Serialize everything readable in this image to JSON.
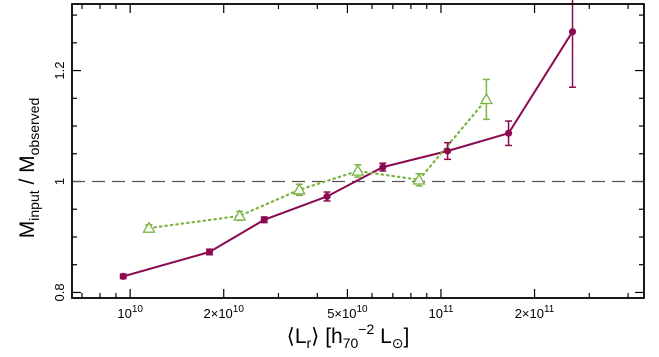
{
  "chart_data": {
    "type": "scatter",
    "title": "",
    "xlabel": {
      "main": "⟨L",
      "sub": "r",
      "rest": "⟩ [h",
      "sub2": "70",
      "sup": "−2",
      "unit": " L",
      "sun": "⊙",
      "close": "]"
    },
    "ylabel": {
      "m1": "M",
      "s1": "input",
      "sep": " / ",
      "m2": "M",
      "s2": "observed"
    },
    "x_scale": "log",
    "xlim": [
      6500000000,
      450000000000
    ],
    "ylim": [
      0.79,
      1.32
    ],
    "x_major_ticks": [
      {
        "value": 10000000000,
        "base": "10",
        "exp": "10"
      },
      {
        "value": 20000000000,
        "base": "2×10",
        "exp": "10"
      },
      {
        "value": 50000000000,
        "base": "5×10",
        "exp": "10"
      },
      {
        "value": 100000000000,
        "base": "10",
        "exp": "11"
      },
      {
        "value": 200000000000,
        "base": "2×10",
        "exp": "11"
      }
    ],
    "y_major_ticks": [
      {
        "value": 0.8,
        "label": "0.8"
      },
      {
        "value": 1.0,
        "label": "1"
      },
      {
        "value": 1.2,
        "label": "1.2"
      }
    ],
    "reference_line": {
      "y": 1.0,
      "style": "dashed",
      "color": "#555555"
    },
    "grid": false,
    "series": [
      {
        "marker": "circle",
        "line": "solid",
        "color": "#8b0a50",
        "points": [
          {
            "x": 9500000000,
            "y": 0.829,
            "err": 0.004
          },
          {
            "x": 18000000000,
            "y": 0.873,
            "err": 0.005
          },
          {
            "x": 27000000000,
            "y": 0.931,
            "err": 0.005
          },
          {
            "x": 43000000000,
            "y": 0.973,
            "err": 0.008
          },
          {
            "x": 65000000000,
            "y": 1.026,
            "err": 0.007
          },
          {
            "x": 105000000000,
            "y": 1.055,
            "err": 0.015
          },
          {
            "x": 165000000000,
            "y": 1.087,
            "err": 0.022
          },
          {
            "x": 265000000000,
            "y": 1.27,
            "err": 0.1
          }
        ]
      },
      {
        "marker": "triangle",
        "line": "dotted",
        "color": "#7cb342",
        "points": [
          {
            "x": 11500000000,
            "y": 0.916,
            "err": 0.006
          },
          {
            "x": 22500000000,
            "y": 0.938,
            "err": 0.008
          },
          {
            "x": 35000000000,
            "y": 0.985,
            "err": 0.01
          },
          {
            "x": 54000000000,
            "y": 1.019,
            "err": 0.011
          },
          {
            "x": 85000000000,
            "y": 1.003,
            "err": 0.011
          },
          {
            "x": 140000000000,
            "y": 1.148,
            "err": 0.036
          }
        ]
      }
    ]
  }
}
